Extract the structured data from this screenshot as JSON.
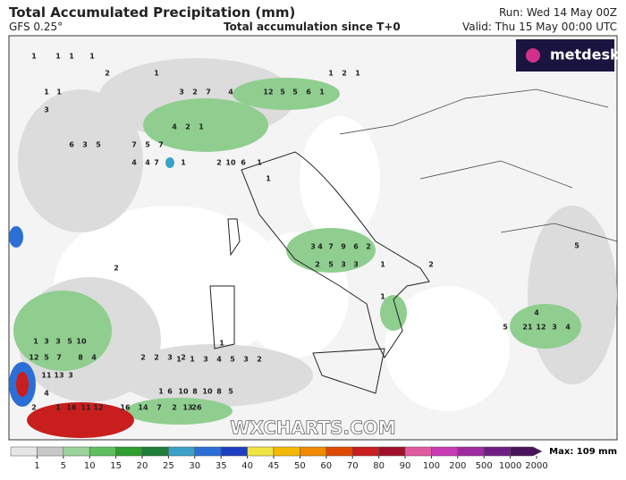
{
  "header": {
    "title": "Total Accumulated Precipitation (mm)",
    "model": "GFS 0.25°",
    "subtitle": "Total accumulation since T+0",
    "run": "Run: Wed 14 May 00Z",
    "valid": "Valid: Thu 15 May 00:00 UTC"
  },
  "logo": "metdesk",
  "watermark": "WXCHARTS.COM",
  "map_labels": [
    "1",
    "1",
    "1",
    "1",
    "2",
    "1",
    "3",
    "2",
    "7",
    "4",
    "12",
    "5",
    "5",
    "6",
    "1",
    "1",
    "2",
    "1",
    "1",
    "1",
    "3",
    "6",
    "3",
    "5",
    "7",
    "5",
    "7",
    "4",
    "2",
    "1",
    "4",
    "4",
    "7",
    "1",
    "2",
    "10",
    "6",
    "1",
    "1",
    "3",
    "4",
    "7",
    "9",
    "6",
    "2",
    "1",
    "2",
    "5",
    "3",
    "3",
    "2",
    "1",
    "5",
    "1",
    "3",
    "3",
    "5",
    "10",
    "12",
    "5",
    "7",
    "8",
    "4",
    "2",
    "2",
    "3",
    "2",
    "1",
    "11",
    "13",
    "3",
    "4",
    "1",
    "6",
    "10",
    "8",
    "10",
    "8",
    "5",
    "2",
    "1",
    "16",
    "11",
    "12",
    "16",
    "14",
    "7",
    "2",
    "13",
    "26",
    "21",
    "12",
    "3",
    "4",
    "4",
    "5",
    "1",
    "1",
    "3",
    "4",
    "5",
    "3",
    "2",
    "2"
  ],
  "colorbar": {
    "ticks": [
      1,
      5,
      10,
      15,
      20,
      25,
      30,
      35,
      40,
      45,
      50,
      60,
      70,
      80,
      90,
      100,
      200,
      500,
      1000,
      2000
    ],
    "colors": [
      "#e6e6e6",
      "#c8c8c8",
      "#9bd39b",
      "#5fbf5f",
      "#2e9e2e",
      "#1f7f3a",
      "#3aa0c8",
      "#2b6fd6",
      "#1d3fbf",
      "#f0e442",
      "#f5b800",
      "#f08a00",
      "#e04a00",
      "#c81e1e",
      "#a0102a",
      "#e05aa0",
      "#c83ab4",
      "#9e2aa0",
      "#6e1e82",
      "#4a145a"
    ],
    "max_label": "Max: 109 mm"
  }
}
